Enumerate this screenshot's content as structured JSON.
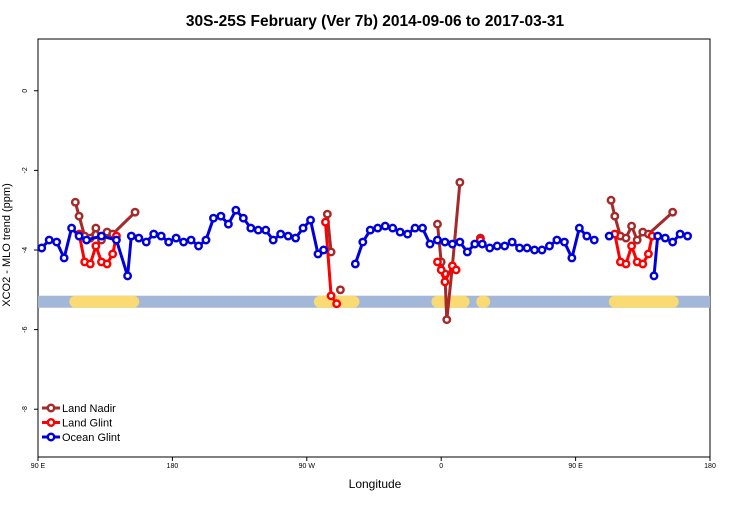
{
  "chart_data": {
    "type": "line",
    "title": "30S-25S February (Ver 7b)   2014-09-06 to 2017-03-31",
    "xlabel": "Longitude",
    "ylabel": "XCO2 - MLO trend (ppm)",
    "xlim": [
      90,
      450
    ],
    "ylim": [
      -9.2,
      1.3
    ],
    "x_ticks": [
      {
        "value": 90,
        "label": "90 E"
      },
      {
        "value": 162,
        "label": "180"
      },
      {
        "value": 234,
        "label": "90 W"
      },
      {
        "value": 306,
        "label": "0"
      },
      {
        "value": 378,
        "label": "90 E"
      },
      {
        "value": 450,
        "label": "180"
      }
    ],
    "y_ticks": [
      {
        "value": 0,
        "label": "0"
      },
      {
        "value": -2,
        "label": "-2"
      },
      {
        "value": -4,
        "label": "-4"
      },
      {
        "value": -6,
        "label": "-6"
      },
      {
        "value": -8,
        "label": "-8"
      }
    ],
    "grid": false,
    "legend_position": "bottom-left",
    "surface_band": {
      "y": -5.3,
      "ocean_color": "#a3b8d8",
      "land_color": "#fada73",
      "land_segments": [
        [
          110,
          141
        ],
        [
          241,
          259
        ],
        [
          304,
          318
        ],
        [
          328,
          329
        ],
        [
          399,
          430
        ]
      ]
    },
    "series": [
      {
        "name": "Land Nadir",
        "color": "#a52a2a",
        "segments": [
          [
            [
              110,
              -2.8
            ],
            [
              112,
              -3.15
            ],
            [
              115,
              -3.65
            ],
            [
              118,
              -3.7
            ],
            [
              121,
              -3.45
            ],
            [
              124,
              -3.75
            ],
            [
              127,
              -3.55
            ],
            [
              130,
              -3.6
            ],
            [
              142,
              -3.05
            ]
          ],
          [
            [
              245,
              -3.1
            ],
            [
              247,
              -4.05
            ]
          ],
          [
            [
              252,
              -5.0
            ]
          ],
          [
            [
              304,
              -3.35
            ],
            [
              306,
              -4.3
            ],
            [
              308,
              -4.6
            ],
            [
              309,
              -5.75
            ],
            [
              312,
              -4.4
            ],
            [
              316,
              -2.3
            ]
          ],
          [
            [
              327,
              -3.7
            ]
          ],
          [
            [
              397,
              -2.75
            ],
            [
              399,
              -3.15
            ],
            [
              402,
              -3.65
            ],
            [
              405,
              -3.7
            ],
            [
              408,
              -3.4
            ],
            [
              411,
              -3.75
            ],
            [
              414,
              -3.55
            ],
            [
              417,
              -3.6
            ],
            [
              430,
              -3.05
            ]
          ]
        ]
      },
      {
        "name": "Land Glint",
        "color": "#ff0000",
        "segments": [
          [
            [
              112,
              -3.6
            ],
            [
              115,
              -4.3
            ],
            [
              118,
              -4.35
            ],
            [
              121,
              -3.9
            ],
            [
              124,
              -4.3
            ],
            [
              127,
              -4.35
            ],
            [
              130,
              -4.1
            ],
            [
              132,
              -3.65
            ]
          ],
          [
            [
              244,
              -3.3
            ],
            [
              247,
              -5.15
            ],
            [
              250,
              -5.35
            ]
          ],
          [
            [
              304,
              -4.3
            ],
            [
              306,
              -4.5
            ],
            [
              308,
              -4.8
            ],
            [
              312,
              -4.4
            ],
            [
              314,
              -4.5
            ]
          ],
          [
            [
              327,
              -3.75
            ]
          ],
          [
            [
              399,
              -3.6
            ],
            [
              402,
              -4.3
            ],
            [
              405,
              -4.35
            ],
            [
              408,
              -3.9
            ],
            [
              411,
              -4.3
            ],
            [
              414,
              -4.35
            ],
            [
              417,
              -4.1
            ],
            [
              419,
              -3.65
            ]
          ]
        ]
      },
      {
        "name": "Ocean Glint",
        "color": "#0000dd",
        "segments": [
          [
            [
              92,
              -3.95
            ],
            [
              96,
              -3.75
            ],
            [
              100,
              -3.8
            ],
            [
              104,
              -4.2
            ],
            [
              108,
              -3.45
            ],
            [
              112,
              -3.65
            ],
            [
              116,
              -3.75
            ],
            [
              124,
              -3.65
            ],
            [
              132,
              -3.75
            ],
            [
              138,
              -4.65
            ],
            [
              140,
              -3.65
            ],
            [
              144,
              -3.7
            ],
            [
              148,
              -3.8
            ],
            [
              152,
              -3.6
            ],
            [
              156,
              -3.65
            ],
            [
              160,
              -3.8
            ],
            [
              164,
              -3.7
            ],
            [
              168,
              -3.8
            ],
            [
              172,
              -3.75
            ],
            [
              176,
              -3.9
            ],
            [
              180,
              -3.75
            ],
            [
              184,
              -3.2
            ],
            [
              188,
              -3.15
            ],
            [
              192,
              -3.35
            ],
            [
              196,
              -3.0
            ],
            [
              200,
              -3.2
            ],
            [
              204,
              -3.45
            ],
            [
              208,
              -3.5
            ],
            [
              212,
              -3.5
            ],
            [
              216,
              -3.75
            ],
            [
              220,
              -3.6
            ],
            [
              224,
              -3.65
            ],
            [
              228,
              -3.7
            ],
            [
              232,
              -3.45
            ],
            [
              236,
              -3.25
            ],
            [
              240,
              -4.1
            ],
            [
              243,
              -4.0
            ]
          ],
          [
            [
              260,
              -4.35
            ],
            [
              264,
              -3.8
            ],
            [
              268,
              -3.5
            ],
            [
              272,
              -3.45
            ],
            [
              276,
              -3.4
            ],
            [
              280,
              -3.45
            ],
            [
              284,
              -3.55
            ],
            [
              288,
              -3.6
            ],
            [
              292,
              -3.45
            ],
            [
              296,
              -3.45
            ],
            [
              300,
              -3.85
            ],
            [
              304,
              -3.75
            ],
            [
              308,
              -3.8
            ],
            [
              312,
              -3.85
            ]
          ],
          [
            [
              316,
              -3.8
            ],
            [
              320,
              -4.05
            ],
            [
              324,
              -3.85
            ],
            [
              328,
              -3.85
            ],
            [
              332,
              -3.95
            ],
            [
              336,
              -3.9
            ],
            [
              340,
              -3.9
            ],
            [
              344,
              -3.8
            ],
            [
              348,
              -3.95
            ],
            [
              352,
              -3.95
            ],
            [
              356,
              -4.0
            ],
            [
              360,
              -4.0
            ],
            [
              364,
              -3.9
            ],
            [
              368,
              -3.75
            ],
            [
              372,
              -3.8
            ],
            [
              376,
              -4.2
            ],
            [
              380,
              -3.45
            ],
            [
              384,
              -3.65
            ],
            [
              388,
              -3.75
            ]
          ],
          [
            [
              396,
              -3.65
            ]
          ],
          [
            [
              420,
              -4.65
            ],
            [
              422,
              -3.65
            ],
            [
              426,
              -3.7
            ],
            [
              430,
              -3.8
            ],
            [
              434,
              -3.6
            ],
            [
              438,
              -3.65
            ]
          ]
        ]
      }
    ]
  }
}
